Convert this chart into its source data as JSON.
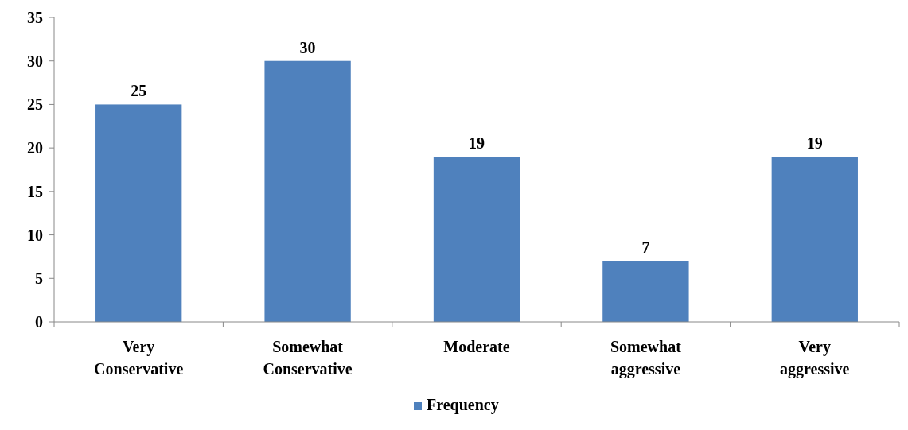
{
  "chart_data": {
    "type": "bar",
    "categories": [
      "Very Conservative",
      "Somewhat Conservative",
      "Moderate",
      "Somewhat aggressive",
      "Very aggressive"
    ],
    "series": [
      {
        "name": "Frequency",
        "color": "#4f81bd",
        "values": [
          25,
          30,
          19,
          7,
          19
        ]
      }
    ],
    "ylim": [
      0,
      35
    ],
    "yticks": [
      0,
      5,
      10,
      15,
      20,
      25,
      30,
      35
    ],
    "grid": false,
    "legend": "bottom",
    "data_labels": true
  }
}
